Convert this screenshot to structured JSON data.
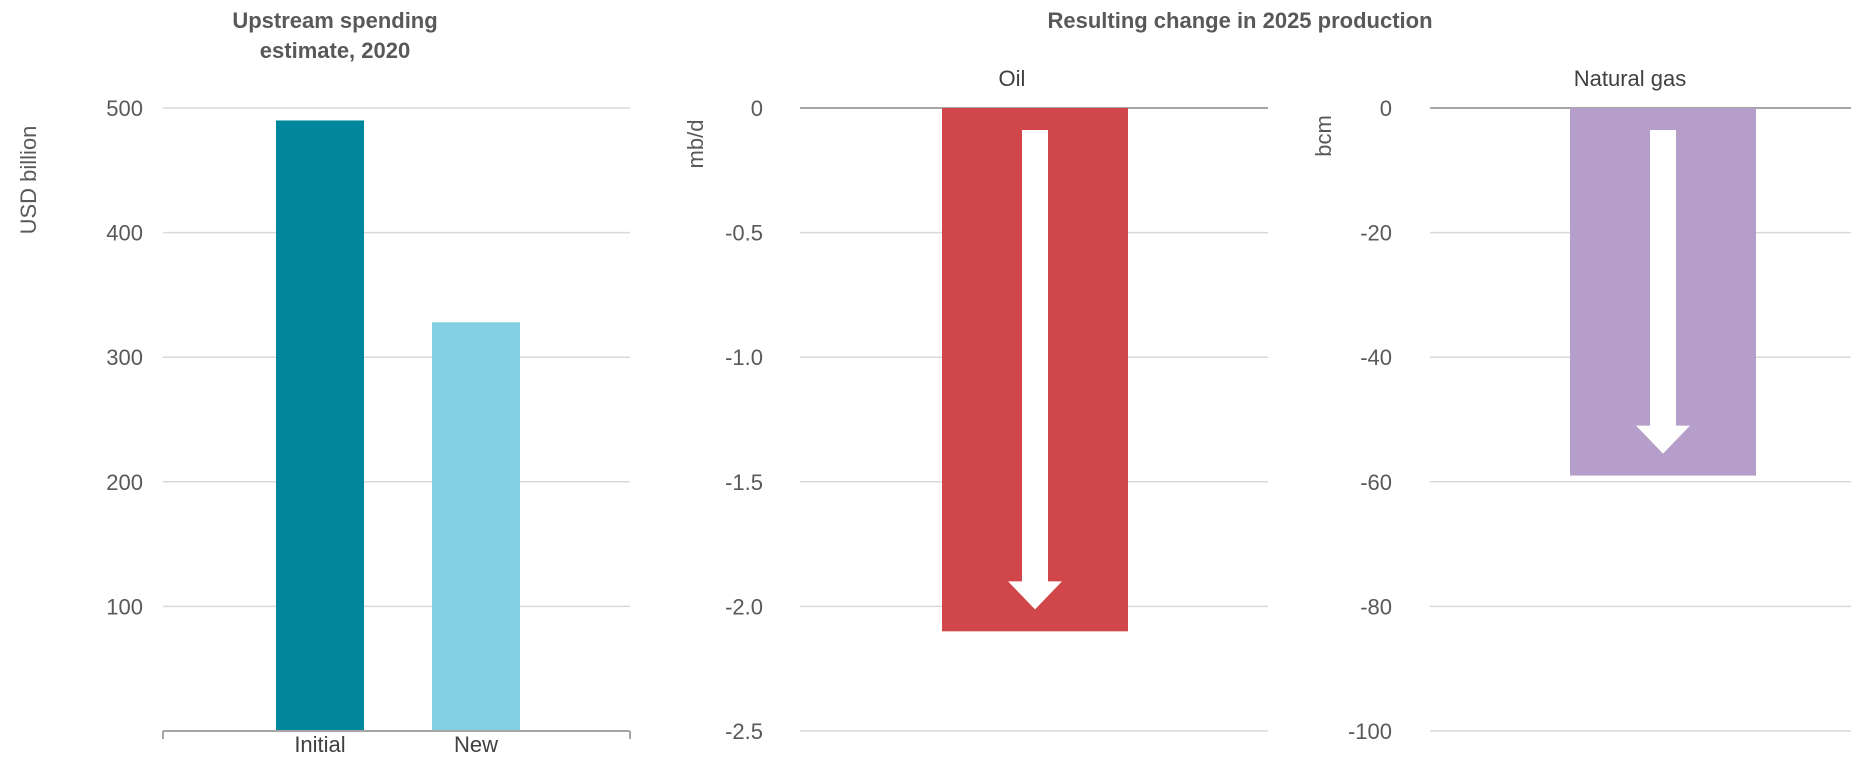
{
  "chart_data": [
    {
      "type": "bar",
      "title": "Upstream spending estimate, 2020",
      "title_lines": [
        "Upstream spending",
        "estimate, 2020"
      ],
      "ylabel": "USD billion",
      "ylim": [
        0,
        500
      ],
      "yticks": [
        100,
        200,
        300,
        400,
        500
      ],
      "categories": [
        "Initial",
        "New"
      ],
      "values": [
        490,
        328
      ],
      "colors": [
        "#00879e",
        "#82cfe3"
      ]
    },
    {
      "type": "bar",
      "group_title": "Resulting change in 2025 production",
      "title": "Oil",
      "ylabel": "mb/d",
      "ylim": [
        -2.5,
        0
      ],
      "yticks": [
        0,
        -0.5,
        -1.0,
        -1.5,
        -2.0,
        -2.5
      ],
      "ytick_labels": [
        "0",
        "-0.5",
        "-1.0",
        "-1.5",
        "-2.0",
        "-2.5"
      ],
      "values": [
        -2.1
      ],
      "colors": [
        "#d1464a"
      ],
      "arrow": "down"
    },
    {
      "type": "bar",
      "title": "Natural gas",
      "ylabel": "bcm",
      "ylim": [
        -100,
        0
      ],
      "yticks": [
        0,
        -20,
        -40,
        -60,
        -80,
        -100
      ],
      "ytick_labels": [
        "0",
        "-20",
        "-40",
        "-60",
        "-80",
        "-100"
      ],
      "values": [
        -59
      ],
      "colors": [
        "#b59fca"
      ],
      "arrow": "down"
    }
  ]
}
